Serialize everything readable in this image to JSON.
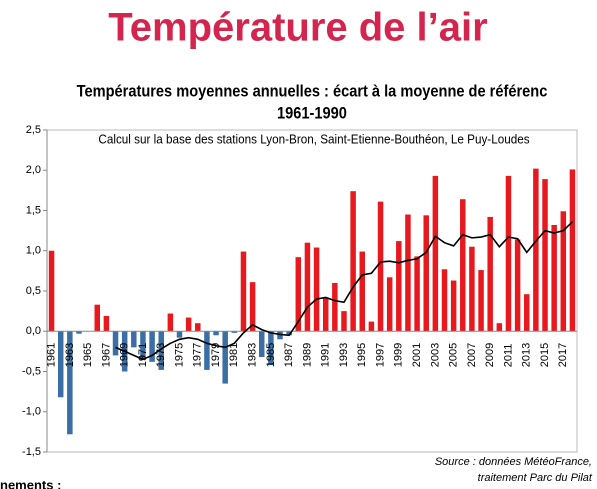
{
  "header": {
    "title": "Température de l’air"
  },
  "chart_data": {
    "type": "bar",
    "title": "Températures moyennes annuelles : écart à la moyenne de référenc",
    "subtitle": "1961-1990",
    "annotation": "Calcul sur la base des stations Lyon-Bron, Saint-Etienne-Bouthéon, Le Puy-Loudes",
    "source": [
      "Source : données MétéoFrance,",
      "traitement Parc du Pilat"
    ],
    "footer": "nements :",
    "categories": [
      "1961",
      null,
      "1963",
      null,
      "1965",
      null,
      "1967",
      null,
      "1969",
      null,
      "1971",
      null,
      "1973",
      null,
      "1975",
      null,
      "1977",
      null,
      "1979",
      null,
      "1981",
      null,
      "1983",
      null,
      "1985",
      null,
      "1987",
      null,
      "1989",
      null,
      "1991",
      null,
      "1993",
      null,
      "1995",
      null,
      "1997",
      null,
      "1999",
      null,
      "2001",
      null,
      "2003",
      null,
      "2005",
      null,
      "2007",
      null,
      "2009",
      null,
      "2011",
      null,
      "2013",
      null,
      "2015",
      null,
      "2017",
      null
    ],
    "values": [
      1.0,
      -0.82,
      -1.28,
      -0.03,
      0.0,
      0.33,
      0.19,
      -0.3,
      -0.5,
      -0.2,
      -0.35,
      -0.38,
      -0.48,
      0.22,
      -0.08,
      0.17,
      0.1,
      -0.48,
      -0.05,
      -0.65,
      -0.02,
      0.99,
      0.61,
      -0.32,
      -0.42,
      -0.1,
      -0.05,
      0.92,
      1.1,
      1.04,
      0.42,
      0.6,
      0.25,
      1.74,
      0.99,
      0.12,
      1.61,
      0.67,
      1.12,
      1.45,
      0.93,
      1.44,
      1.93,
      0.77,
      0.63,
      1.64,
      1.05,
      0.76,
      1.42,
      0.1,
      1.93,
      1.14,
      0.46,
      2.02,
      1.89,
      1.32,
      1.49,
      2.01
    ],
    "positive_color": "#e8191e",
    "negative_color": "#3a6ea5",
    "trend": {
      "color": "#000000",
      "values": [
        null,
        null,
        null,
        null,
        null,
        null,
        null,
        -0.2,
        -0.25,
        -0.3,
        -0.35,
        -0.3,
        -0.22,
        -0.15,
        -0.1,
        -0.08,
        -0.1,
        -0.15,
        -0.18,
        -0.2,
        -0.15,
        -0.02,
        0.08,
        0.02,
        -0.02,
        -0.04,
        -0.05,
        0.12,
        0.3,
        0.4,
        0.42,
        0.38,
        0.36,
        0.55,
        0.7,
        0.72,
        0.86,
        0.87,
        0.85,
        0.88,
        0.9,
        0.98,
        1.18,
        1.1,
        1.06,
        1.2,
        1.16,
        1.17,
        1.2,
        1.05,
        1.17,
        1.15,
        0.98,
        1.12,
        1.25,
        1.22,
        1.25,
        1.36
      ]
    },
    "ylim": [
      -1.5,
      2.5
    ],
    "yticks": [
      {
        "value": -1.5,
        "label": "-1,5"
      },
      {
        "value": -1.0,
        "label": "-1,0"
      },
      {
        "value": -0.5,
        "label": "-0,5"
      },
      {
        "value": 0,
        "label": "0,0"
      },
      {
        "value": 0.5,
        "label": "0,5"
      },
      {
        "value": 1.0,
        "label": "1,0"
      },
      {
        "value": 1.5,
        "label": "1,5"
      },
      {
        "value": 2.0,
        "label": "2,0"
      },
      {
        "value": 2.5,
        "label": "2,5"
      }
    ],
    "grid": false
  }
}
